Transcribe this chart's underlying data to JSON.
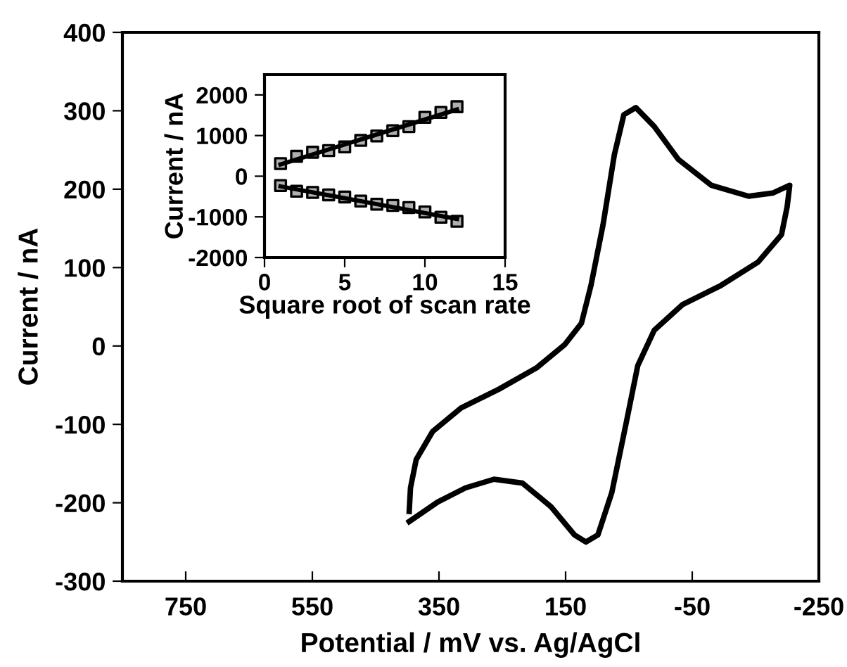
{
  "chart_data": [
    {
      "type": "line",
      "xlabel": "Potential / mV vs. Ag/AgCl",
      "ylabel": "Current / nA",
      "xlim": [
        850,
        -250
      ],
      "xticks": [
        750,
        550,
        350,
        150,
        -50,
        -250
      ],
      "ylim": [
        -300,
        400
      ],
      "yticks": [
        -300,
        -200,
        -100,
        0,
        100,
        200,
        300,
        400
      ],
      "grid": false,
      "marker": "none",
      "line_style": "solid",
      "series": [
        {
          "color": "#000000",
          "x": [
            397,
            352,
            308,
            263,
            218,
            173,
            136,
            118,
            99,
            77,
            54,
            36,
            10,
            -35,
            -95,
            -154,
            -191,
            -200,
            -204,
            -177,
            -139,
            -80,
            -28,
            10,
            39,
            58,
            73,
            91,
            110,
            125,
            151,
            196,
            255,
            315,
            360,
            386,
            395,
            397
          ],
          "values": [
            -224,
            -199,
            -181,
            -170,
            -175,
            -205,
            -241,
            -250,
            -241,
            -187,
            -97,
            -25,
            20,
            53,
            77,
            107,
            142,
            178,
            205,
            195,
            191,
            205,
            238,
            280,
            304,
            295,
            244,
            154,
            77,
            29,
            2,
            -28,
            -55,
            -79,
            -109,
            -145,
            -181,
            -211
          ]
        }
      ]
    },
    {
      "type": "scatter",
      "xlabel": "Square root of scan rate",
      "ylabel": "Current / nA",
      "xlim": [
        0,
        15
      ],
      "xticks": [
        0,
        5,
        10,
        15
      ],
      "ylim": [
        -2000,
        2500
      ],
      "yticks": [
        -2000,
        -1000,
        0,
        1000,
        2000
      ],
      "grid": false,
      "series": [
        {
          "color": "#b0b0b0",
          "marker": "square",
          "x": [
            1,
            2,
            3,
            4,
            5,
            6,
            7,
            8,
            9,
            10,
            11,
            12
          ],
          "values": [
            310,
            490,
            590,
            630,
            720,
            880,
            990,
            1120,
            1220,
            1450,
            1570,
            1710
          ]
        },
        {
          "color": "#b0b0b0",
          "marker": "square",
          "x": [
            1,
            2,
            3,
            4,
            5,
            6,
            7,
            8,
            9,
            10,
            11,
            12
          ],
          "values": [
            -230,
            -370,
            -400,
            -460,
            -510,
            -610,
            -690,
            -720,
            -770,
            -880,
            -1010,
            -1110
          ]
        },
        {
          "type": "line",
          "color": "#000000",
          "x": [
            1,
            12
          ],
          "values": [
            290,
            1640
          ]
        },
        {
          "type": "line",
          "color": "#000000",
          "x": [
            1,
            12
          ],
          "values": [
            -250,
            -1050
          ]
        }
      ]
    }
  ]
}
